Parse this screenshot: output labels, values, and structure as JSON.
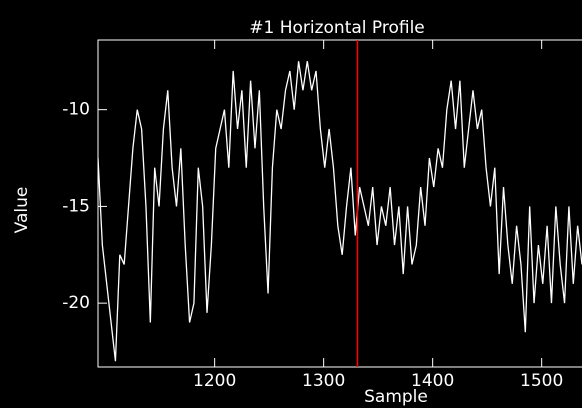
{
  "chart_data": {
    "type": "line",
    "title": "#1 Horizontal Profile",
    "x_label": "Sample",
    "y_label": "Value",
    "x": [
      1093,
      1097,
      1101,
      1105,
      1109,
      1113,
      1117,
      1121,
      1125,
      1129,
      1133,
      1137,
      1141,
      1145,
      1149,
      1153,
      1157,
      1161,
      1165,
      1169,
      1173,
      1177,
      1181,
      1185,
      1189,
      1193,
      1197,
      1201,
      1205,
      1209,
      1213,
      1217,
      1221,
      1225,
      1229,
      1233,
      1237,
      1241,
      1245,
      1249,
      1253,
      1257,
      1261,
      1265,
      1269,
      1273,
      1277,
      1281,
      1285,
      1289,
      1293,
      1297,
      1301,
      1305,
      1309,
      1313,
      1317,
      1321,
      1325,
      1329,
      1333,
      1337,
      1341,
      1345,
      1349,
      1353,
      1357,
      1361,
      1365,
      1369,
      1373,
      1377,
      1381,
      1385,
      1389,
      1393,
      1397,
      1401,
      1405,
      1409,
      1413,
      1417,
      1421,
      1425,
      1429,
      1433,
      1437,
      1441,
      1445,
      1449,
      1453,
      1457,
      1461,
      1465,
      1469,
      1473,
      1477,
      1481,
      1485,
      1489,
      1493,
      1497,
      1501,
      1505,
      1509,
      1513,
      1517,
      1521,
      1525,
      1529,
      1533,
      1537
    ],
    "series": [
      {
        "color": "#ffffff",
        "values": [
          -12.5,
          -17,
          -19,
          -21,
          -23,
          -17.5,
          -18,
          -15,
          -12,
          -10,
          -11,
          -15,
          -21,
          -13,
          -15,
          -11,
          -9,
          -13,
          -15,
          -12,
          -17,
          -21,
          -20,
          -13,
          -15,
          -20.5,
          -17,
          -12,
          -11,
          -10,
          -13,
          -8,
          -11,
          -9,
          -13,
          -8.5,
          -12,
          -9,
          -15,
          -19.5,
          -13,
          -10,
          -11,
          -9,
          -8,
          -10,
          -7.5,
          -9,
          -7.5,
          -9,
          -8,
          -11,
          -13,
          -11,
          -13,
          -16,
          -17.5,
          -15,
          -13,
          -16.5,
          -14,
          -15,
          -16,
          -14,
          -17,
          -15,
          -16,
          -14,
          -17,
          -15,
          -18.5,
          -15,
          -18,
          -17,
          -14,
          -16,
          -12.5,
          -14,
          -12,
          -13,
          -10,
          -8.5,
          -11,
          -8.5,
          -13,
          -11,
          -9,
          -11,
          -10,
          -13,
          -15,
          -13,
          -18.5,
          -14,
          -17,
          -19,
          -16,
          -18,
          -21.5,
          -15,
          -20,
          -17,
          -19,
          -16,
          -20,
          -15,
          -18,
          -20,
          -15,
          -19,
          -16,
          -18
        ]
      }
    ],
    "cursor_x": 1331,
    "cursor_color": "#ff0000",
    "xlim": [
      1093,
      1537
    ],
    "ylim": [
      -23.3,
      -6.4
    ],
    "xticks": [
      1200,
      1300,
      1400,
      1500
    ],
    "yticks": [
      -10,
      -15,
      -20
    ]
  }
}
